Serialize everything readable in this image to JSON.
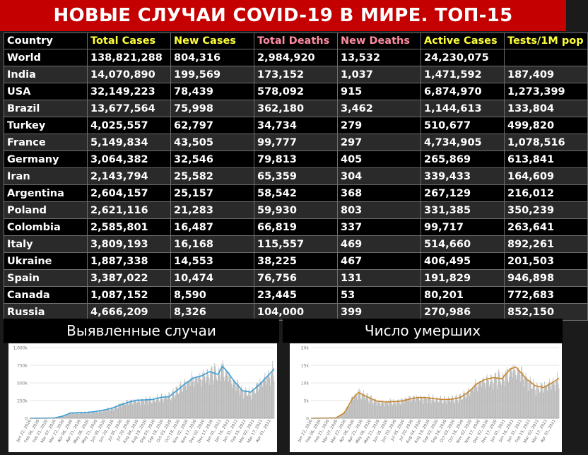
{
  "title": "НОВЫЕ СЛУЧАИ COVID-19 В МИРЕ. ТОП-15",
  "colors": {
    "title_bg": "#c40000",
    "header_yellow": "#ffff3a",
    "header_pink": "#ff8ba0",
    "line_blue": "#3a9fd6",
    "line_orange": "#c8862a",
    "bar_gray": "#b5b5b5"
  },
  "table": {
    "headers": [
      {
        "label": "Country",
        "color": "white"
      },
      {
        "label": "Total Cases",
        "color": "yellow"
      },
      {
        "label": "New Cases",
        "color": "yellow"
      },
      {
        "label": "Total Deaths",
        "color": "pink"
      },
      {
        "label": "New Deaths",
        "color": "pink"
      },
      {
        "label": "Active Cases",
        "color": "yellow"
      },
      {
        "label": "Tests/1M pop",
        "color": "yellow"
      }
    ],
    "rows": [
      [
        "World",
        "138,821,288",
        "804,316",
        "2,984,920",
        "13,532",
        "24,230,075",
        ""
      ],
      [
        "India",
        "14,070,890",
        "199,569",
        "173,152",
        "1,037",
        "1,471,592",
        "187,409"
      ],
      [
        "USA",
        "32,149,223",
        "78,439",
        "578,092",
        "915",
        "6,874,970",
        "1,273,399"
      ],
      [
        "Brazil",
        "13,677,564",
        "75,998",
        "362,180",
        "3,462",
        "1,144,613",
        "133,804"
      ],
      [
        "Turkey",
        "4,025,557",
        "62,797",
        "34,734",
        "279",
        "510,677",
        "499,820"
      ],
      [
        "France",
        "5,149,834",
        "43,505",
        "99,777",
        "297",
        "4,734,905",
        "1,078,516"
      ],
      [
        "Germany",
        "3,064,382",
        "32,546",
        "79,813",
        "405",
        "265,869",
        "613,841"
      ],
      [
        "Iran",
        "2,143,794",
        "25,582",
        "65,359",
        "304",
        "339,433",
        "164,609"
      ],
      [
        "Argentina",
        "2,604,157",
        "25,157",
        "58,542",
        "368",
        "267,129",
        "216,012"
      ],
      [
        "Poland",
        "2,621,116",
        "21,283",
        "59,930",
        "803",
        "331,385",
        "350,239"
      ],
      [
        "Colombia",
        "2,585,801",
        "16,487",
        "66,819",
        "337",
        "99,717",
        "263,641"
      ],
      [
        "Italy",
        "3,809,193",
        "16,168",
        "115,557",
        "469",
        "514,660",
        "892,261"
      ],
      [
        "Ukraine",
        "1,887,338",
        "14,553",
        "38,225",
        "467",
        "406,495",
        "201,503"
      ],
      [
        "Spain",
        "3,387,022",
        "10,474",
        "76,756",
        "131",
        "191,829",
        "946,898"
      ],
      [
        "Canada",
        "1,087,152",
        "8,590",
        "23,445",
        "53",
        "80,201",
        "772,683"
      ],
      [
        "Russia",
        "4,666,209",
        "8,326",
        "104,000",
        "399",
        "270,986",
        "852,150"
      ]
    ]
  },
  "chart_data": [
    {
      "type": "bar",
      "title": "Выявленные случаи",
      "ylim": [
        0,
        1000000
      ],
      "yticks": [
        0,
        250000,
        500000,
        750000,
        1000000
      ],
      "ytick_labels": [
        "0",
        "250k",
        "500k",
        "750k",
        "1,000k"
      ],
      "xtick_labels": [
        "Jan 22, 2020",
        "Feb 06, 2020",
        "Feb 21, 2020",
        "Mar 07, 2020",
        "Mar 22, 2020",
        "Apr 06, 2020",
        "Apr 21, 2020",
        "May 06, 2020",
        "May 21, 2020",
        "Jun 05, 2020",
        "Jun 20, 2020",
        "Jul 05, 2020",
        "Jul 20, 2020",
        "Aug 04, 2020",
        "Aug 19, 2020",
        "Sep 03, 2020",
        "Sep 18, 2020",
        "Oct 03, 2020",
        "Oct 18, 2020",
        "Nov 02, 2020",
        "Nov 17, 2020",
        "Dec 02, 2020",
        "Dec 17, 2020",
        "Jan 01, 2021",
        "Jan 16, 2021",
        "Jan 31, 2021",
        "Feb 15, 2021",
        "Mar 02, 2021",
        "Mar 17, 2021",
        "Apr 01, 2021"
      ],
      "series_points": [
        {
          "date": "2020-01-22",
          "value": 0
        },
        {
          "date": "2020-02-21",
          "value": 2000
        },
        {
          "date": "2020-03-07",
          "value": 4000
        },
        {
          "date": "2020-03-22",
          "value": 30000
        },
        {
          "date": "2020-04-06",
          "value": 75000
        },
        {
          "date": "2020-04-21",
          "value": 78000
        },
        {
          "date": "2020-05-06",
          "value": 82000
        },
        {
          "date": "2020-05-21",
          "value": 95000
        },
        {
          "date": "2020-06-05",
          "value": 115000
        },
        {
          "date": "2020-06-20",
          "value": 140000
        },
        {
          "date": "2020-07-05",
          "value": 185000
        },
        {
          "date": "2020-07-20",
          "value": 225000
        },
        {
          "date": "2020-08-04",
          "value": 255000
        },
        {
          "date": "2020-08-19",
          "value": 260000
        },
        {
          "date": "2020-09-03",
          "value": 265000
        },
        {
          "date": "2020-09-18",
          "value": 295000
        },
        {
          "date": "2020-10-03",
          "value": 305000
        },
        {
          "date": "2020-10-18",
          "value": 395000
        },
        {
          "date": "2020-11-02",
          "value": 490000
        },
        {
          "date": "2020-11-17",
          "value": 570000
        },
        {
          "date": "2020-12-02",
          "value": 600000
        },
        {
          "date": "2020-12-17",
          "value": 660000
        },
        {
          "date": "2021-01-01",
          "value": 620000
        },
        {
          "date": "2021-01-09",
          "value": 735000
        },
        {
          "date": "2021-01-16",
          "value": 680000
        },
        {
          "date": "2021-01-31",
          "value": 520000
        },
        {
          "date": "2021-02-15",
          "value": 390000
        },
        {
          "date": "2021-03-02",
          "value": 370000
        },
        {
          "date": "2021-03-17",
          "value": 470000
        },
        {
          "date": "2021-04-01",
          "value": 590000
        },
        {
          "date": "2021-04-14",
          "value": 700000
        }
      ]
    },
    {
      "type": "bar",
      "title": "Число умерших",
      "ylim": [
        0,
        20000
      ],
      "yticks": [
        0,
        5000,
        10000,
        15000,
        20000
      ],
      "ytick_labels": [
        "0",
        "5k",
        "10k",
        "15k",
        "20k"
      ],
      "xtick_labels": [
        "Jan 22, 2020",
        "Feb 06, 2020",
        "Feb 21, 2020",
        "Mar 07, 2020",
        "Mar 22, 2020",
        "Apr 06, 2020",
        "Apr 21, 2020",
        "May 06, 2020",
        "May 21, 2020",
        "Jun 05, 2020",
        "Jun 20, 2020",
        "Jul 05, 2020",
        "Jul 20, 2020",
        "Aug 04, 2020",
        "Aug 19, 2020",
        "Sep 03, 2020",
        "Sep 18, 2020",
        "Oct 03, 2020",
        "Oct 18, 2020",
        "Nov 02, 2020",
        "Nov 17, 2020",
        "Dec 02, 2020",
        "Dec 17, 2020",
        "Jan 01, 2021",
        "Jan 16, 2021",
        "Jan 31, 2021",
        "Feb 15, 2021",
        "Mar 02, 2021",
        "Mar 17, 2021",
        "Apr 01, 2021"
      ],
      "series_points": [
        {
          "date": "2020-01-22",
          "value": 0
        },
        {
          "date": "2020-03-07",
          "value": 100
        },
        {
          "date": "2020-03-22",
          "value": 1500
        },
        {
          "date": "2020-04-06",
          "value": 5500
        },
        {
          "date": "2020-04-17",
          "value": 7300
        },
        {
          "date": "2020-05-06",
          "value": 5800
        },
        {
          "date": "2020-05-21",
          "value": 4800
        },
        {
          "date": "2020-06-05",
          "value": 4600
        },
        {
          "date": "2020-06-20",
          "value": 4700
        },
        {
          "date": "2020-07-05",
          "value": 4900
        },
        {
          "date": "2020-07-20",
          "value": 5500
        },
        {
          "date": "2020-08-04",
          "value": 5900
        },
        {
          "date": "2020-08-19",
          "value": 5800
        },
        {
          "date": "2020-09-03",
          "value": 5500
        },
        {
          "date": "2020-09-18",
          "value": 5300
        },
        {
          "date": "2020-10-03",
          "value": 5400
        },
        {
          "date": "2020-10-18",
          "value": 5900
        },
        {
          "date": "2020-11-02",
          "value": 7500
        },
        {
          "date": "2020-11-17",
          "value": 9800
        },
        {
          "date": "2020-12-02",
          "value": 11000
        },
        {
          "date": "2020-12-17",
          "value": 11500
        },
        {
          "date": "2021-01-01",
          "value": 11200
        },
        {
          "date": "2021-01-16",
          "value": 14000
        },
        {
          "date": "2021-01-26",
          "value": 14500
        },
        {
          "date": "2021-02-15",
          "value": 11000
        },
        {
          "date": "2021-03-02",
          "value": 9200
        },
        {
          "date": "2021-03-17",
          "value": 8700
        },
        {
          "date": "2021-04-01",
          "value": 10000
        },
        {
          "date": "2021-04-14",
          "value": 11300
        }
      ]
    }
  ]
}
